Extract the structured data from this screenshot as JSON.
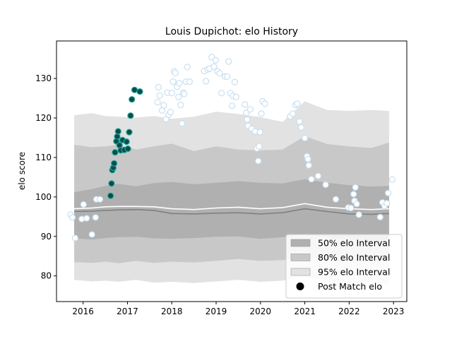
{
  "chart_data": {
    "type": "scatter",
    "title": "Louis Dupichot: elo History",
    "xlabel": "",
    "ylabel": "elo score",
    "xlim": [
      2015.4,
      2023.3
    ],
    "ylim": [
      73.5,
      139.5
    ],
    "x_ticks": [
      2016,
      2017,
      2018,
      2019,
      2020,
      2021,
      2022,
      2023
    ],
    "x_tick_labels": [
      "2016",
      "2017",
      "2018",
      "2019",
      "2020",
      "2021",
      "2022",
      "2023"
    ],
    "y_ticks": [
      80,
      90,
      100,
      110,
      120,
      130
    ],
    "y_tick_labels": [
      "80",
      "90",
      "100",
      "110",
      "120",
      "130"
    ],
    "grid": false,
    "legend_position": "lower-right",
    "legend": [
      {
        "label": "50% elo Interval",
        "kind": "patch",
        "color": "#b0b0b0"
      },
      {
        "label": "80% elo Interval",
        "kind": "patch",
        "color": "#c8c8c8"
      },
      {
        "label": "95% elo Interval",
        "kind": "patch",
        "color": "#e2e2e2"
      },
      {
        "label": "Post Match elo",
        "kind": "marker",
        "color": "#000000"
      }
    ],
    "colors": {
      "band50": "#b0b0b0",
      "band80": "#c8c8c8",
      "band95": "#e2e2e2",
      "median_line": "#808080",
      "mean_line": "#ffffff",
      "highlight_fill": "#0b4d4a",
      "highlight_edge": "#1ea89c",
      "faded_fill": "#ffffff",
      "faded_edge": "#c8dff0"
    },
    "bands": {
      "x": [
        2015.8,
        2016.2,
        2016.5,
        2016.8,
        2017.2,
        2017.6,
        2018.0,
        2018.5,
        2019.0,
        2019.5,
        2020.0,
        2020.5,
        2021.0,
        2021.5,
        2022.0,
        2022.5,
        2022.9
      ],
      "p95_low": [
        79.0,
        78.6,
        78.8,
        78.5,
        79.0,
        78.3,
        78.5,
        78.2,
        78.6,
        79.0,
        78.5,
        78.8,
        79.8,
        78.8,
        78.2,
        78.0,
        77.8
      ],
      "p80_low": [
        83.5,
        83.3,
        83.6,
        83.2,
        83.8,
        83.3,
        83.6,
        83.4,
        83.8,
        84.3,
        83.8,
        84.0,
        85.0,
        84.0,
        83.4,
        83.5,
        83.6
      ],
      "p50_low": [
        89.5,
        89.2,
        89.6,
        89.8,
        89.9,
        89.5,
        89.4,
        89.6,
        89.9,
        90.0,
        89.4,
        89.8,
        90.6,
        89.8,
        89.2,
        89.0,
        89.2
      ],
      "p50_high": [
        101.2,
        102.0,
        102.8,
        103.3,
        102.7,
        103.5,
        103.8,
        103.2,
        103.6,
        104.0,
        103.6,
        103.4,
        104.5,
        103.6,
        103.0,
        102.6,
        102.8
      ],
      "p80_high": [
        113.2,
        112.6,
        112.8,
        113.2,
        112.0,
        112.8,
        113.5,
        111.6,
        112.8,
        112.0,
        111.8,
        112.0,
        115.4,
        113.4,
        112.8,
        112.4,
        113.8
      ],
      "p95_high": [
        120.7,
        121.2,
        120.5,
        120.3,
        120.1,
        120.5,
        119.8,
        120.3,
        121.6,
        121.0,
        120.2,
        119.0,
        124.2,
        122.0,
        121.8,
        122.0,
        121.8
      ],
      "median": [
        96.3,
        96.4,
        96.6,
        96.7,
        96.8,
        96.6,
        95.8,
        95.7,
        95.9,
        96.0,
        95.7,
        96.0,
        97.0,
        96.3,
        95.7,
        95.6,
        95.8
      ],
      "mean": [
        97.0,
        97.2,
        97.5,
        97.6,
        97.6,
        97.5,
        97.0,
        96.8,
        97.2,
        97.4,
        97.0,
        97.3,
        98.3,
        97.4,
        97.0,
        96.8,
        97.0
      ]
    },
    "series": [
      {
        "name": "Post Match elo",
        "style": "highlight",
        "points": [
          [
            2016.62,
            100.3
          ],
          [
            2016.64,
            103.4
          ],
          [
            2016.66,
            106.8
          ],
          [
            2016.68,
            107.4
          ],
          [
            2016.7,
            108.5
          ],
          [
            2016.72,
            111.3
          ],
          [
            2016.75,
            114.1
          ],
          [
            2016.77,
            115.3
          ],
          [
            2016.79,
            116.6
          ],
          [
            2016.82,
            113.1
          ],
          [
            2016.85,
            111.8
          ],
          [
            2016.89,
            114.4
          ],
          [
            2016.93,
            111.9
          ],
          [
            2016.98,
            114.0
          ],
          [
            2017.01,
            112.2
          ],
          [
            2017.04,
            116.4
          ],
          [
            2017.07,
            120.6
          ],
          [
            2017.1,
            124.7
          ],
          [
            2017.16,
            127.1
          ],
          [
            2017.28,
            126.7
          ]
        ]
      },
      {
        "name": "faded",
        "style": "faded",
        "points": [
          [
            2015.72,
            95.5
          ],
          [
            2015.76,
            94.8
          ],
          [
            2015.82,
            89.6
          ],
          [
            2015.97,
            94.4
          ],
          [
            2016.01,
            98.1
          ],
          [
            2016.08,
            94.6
          ],
          [
            2016.2,
            90.5
          ],
          [
            2016.28,
            94.8
          ],
          [
            2016.3,
            99.4
          ],
          [
            2016.38,
            99.4
          ],
          [
            2017.68,
            124.0
          ],
          [
            2017.7,
            127.8
          ],
          [
            2017.73,
            125.7
          ],
          [
            2017.78,
            121.9
          ],
          [
            2017.82,
            123.2
          ],
          [
            2017.87,
            119.7
          ],
          [
            2017.9,
            126.4
          ],
          [
            2017.93,
            120.8
          ],
          [
            2017.97,
            121.5
          ],
          [
            2018.0,
            126.3
          ],
          [
            2018.03,
            129.2
          ],
          [
            2018.05,
            131.8
          ],
          [
            2018.08,
            131.4
          ],
          [
            2018.12,
            127.9
          ],
          [
            2018.15,
            125.3
          ],
          [
            2018.17,
            128.8
          ],
          [
            2018.2,
            123.3
          ],
          [
            2018.23,
            118.6
          ],
          [
            2018.26,
            126.4
          ],
          [
            2018.28,
            126.1
          ],
          [
            2018.32,
            129.2
          ],
          [
            2018.35,
            132.9
          ],
          [
            2018.4,
            129.2
          ],
          [
            2018.73,
            131.9
          ],
          [
            2018.77,
            129.3
          ],
          [
            2018.81,
            132.3
          ],
          [
            2018.85,
            132.5
          ],
          [
            2018.9,
            135.4
          ],
          [
            2018.95,
            133.0
          ],
          [
            2018.99,
            134.6
          ],
          [
            2019.03,
            131.8
          ],
          [
            2019.08,
            131.3
          ],
          [
            2019.12,
            126.3
          ],
          [
            2019.2,
            130.5
          ],
          [
            2019.25,
            130.5
          ],
          [
            2019.28,
            134.3
          ],
          [
            2019.32,
            126.3
          ],
          [
            2019.36,
            123.1
          ],
          [
            2019.38,
            125.6
          ],
          [
            2019.42,
            129.1
          ],
          [
            2019.45,
            125.3
          ],
          [
            2019.65,
            123.4
          ],
          [
            2019.68,
            121.3
          ],
          [
            2019.7,
            119.6
          ],
          [
            2019.72,
            118.0
          ],
          [
            2019.77,
            122.2
          ],
          [
            2019.8,
            117.3
          ],
          [
            2019.88,
            116.6
          ],
          [
            2019.92,
            112.3
          ],
          [
            2019.95,
            109.1
          ],
          [
            2019.97,
            112.8
          ],
          [
            2019.99,
            116.4
          ],
          [
            2020.02,
            121.1
          ],
          [
            2020.05,
            124.2
          ],
          [
            2020.1,
            123.6
          ],
          [
            2020.67,
            120.4
          ],
          [
            2020.73,
            121.1
          ],
          [
            2020.79,
            123.3
          ],
          [
            2020.83,
            123.6
          ],
          [
            2020.88,
            119.1
          ],
          [
            2020.92,
            117.6
          ],
          [
            2021.0,
            114.9
          ],
          [
            2021.05,
            110.3
          ],
          [
            2021.07,
            109.6
          ],
          [
            2021.09,
            108.0
          ],
          [
            2021.15,
            104.5
          ],
          [
            2021.3,
            105.3
          ],
          [
            2021.47,
            103.1
          ],
          [
            2021.7,
            99.4
          ],
          [
            2021.98,
            97.3
          ],
          [
            2022.04,
            97.2
          ],
          [
            2022.1,
            100.7
          ],
          [
            2022.12,
            99.0
          ],
          [
            2022.14,
            102.4
          ],
          [
            2022.17,
            98.2
          ],
          [
            2022.22,
            95.5
          ],
          [
            2022.7,
            94.9
          ],
          [
            2022.75,
            98.6
          ],
          [
            2022.8,
            97.7
          ],
          [
            2022.85,
            98.4
          ],
          [
            2022.88,
            101.0
          ],
          [
            2022.97,
            104.4
          ]
        ]
      }
    ]
  }
}
